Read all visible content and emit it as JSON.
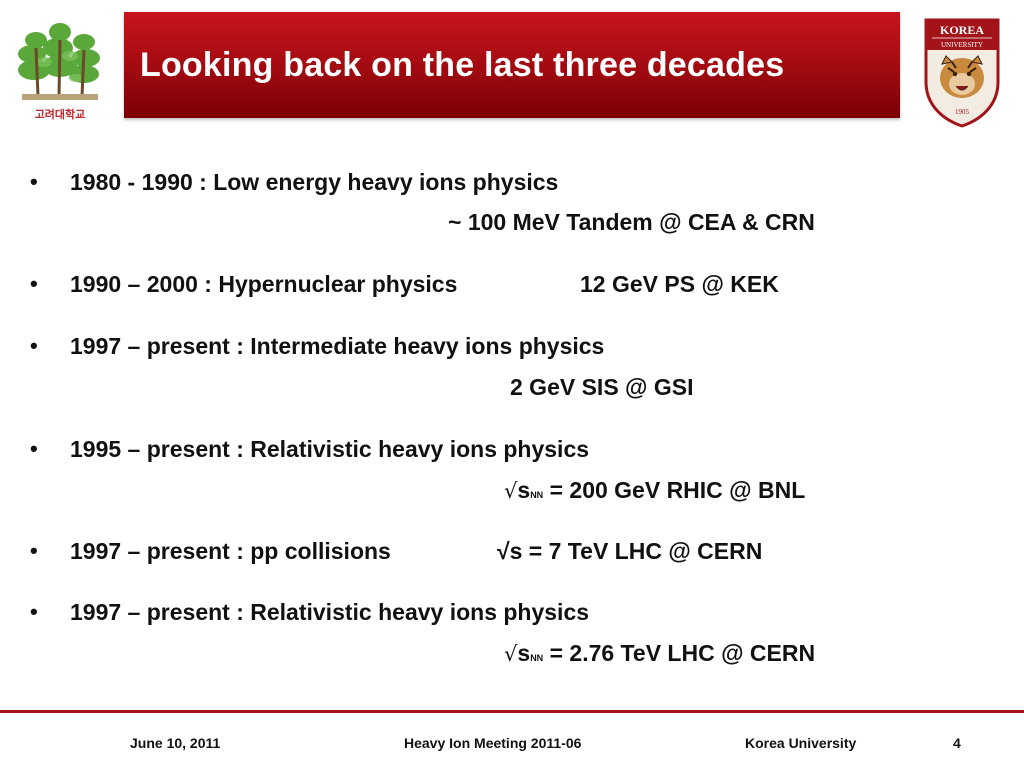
{
  "header": {
    "title": "Looking back on the last three decades",
    "left_logo_label": "고려대학교",
    "right_logo_top": "KOREA",
    "right_logo_sub": "UNIVERSITY",
    "right_logo_year": "1905"
  },
  "bullet_symbol": "•",
  "items": [
    {
      "main": "1980 - 1990 : Low energy heavy ions physics",
      "detail": "~ 100 MeV Tandem @ CEA & CRN"
    },
    {
      "main": "1990 – 2000 : Hypernuclear physics",
      "detail": "12 GeV  PS @ KEK"
    },
    {
      "main": "1997 – present : Intermediate heavy ions physics",
      "detail": "2 GeV  SIS @ GSI"
    },
    {
      "main": "1995 – present : Relativistic heavy ions physics",
      "detail_sqrt": "√",
      "detail_s": "s",
      "detail_sub": "NN",
      "detail_rest": " = 200 GeV  RHIC @ BNL"
    },
    {
      "main": "1997 – present : pp collisions",
      "detail": "√s = 7 TeV  LHC @ CERN"
    },
    {
      "main": "1997 – present : Relativistic heavy ions physics",
      "detail_sqrt": "√",
      "detail_s": "s",
      "detail_sub": "NN",
      "detail_rest": " = 2.76 TeV  LHC @ CERN"
    }
  ],
  "footer": {
    "date": "June 10, 2011",
    "meeting": "Heavy Ion Meeting 2011-06",
    "org": "Korea University",
    "page": "4"
  },
  "colors": {
    "banner": "#b00e14",
    "accent_rule": "#a3141a",
    "tree_green": "#5aa83a"
  },
  "icons": {
    "left_logo": "pine-trees-logo",
    "right_logo": "tiger-shield-logo"
  }
}
